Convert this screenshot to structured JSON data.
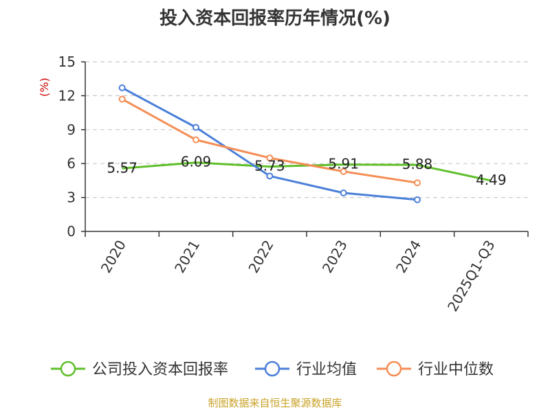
{
  "title": "投入资本回报率历年情况(%)",
  "source": "制图数据来自恒生聚源数据库",
  "chart_data": {
    "type": "line",
    "title": "投入资本回报率历年情况(%)",
    "ylabel": "(%)",
    "xlabel": "",
    "ylim": [
      0,
      15
    ],
    "yticks": [
      0,
      3,
      6,
      9,
      12,
      15
    ],
    "categories": [
      "2020",
      "2021",
      "2022",
      "2023",
      "2024",
      "2025Q1-Q3"
    ],
    "grid": true,
    "legend_position": "bottom",
    "series": [
      {
        "name": "公司投入资本回报率",
        "color": "#5fbf2a",
        "values": [
          5.57,
          6.09,
          5.73,
          5.91,
          5.88,
          4.49
        ],
        "labels": true
      },
      {
        "name": "行业均值",
        "color": "#4a7fd9",
        "values": [
          12.7,
          9.2,
          4.9,
          3.4,
          2.8,
          null
        ],
        "labels": false
      },
      {
        "name": "行业中位数",
        "color": "#f58d55",
        "values": [
          11.7,
          8.1,
          6.5,
          5.3,
          4.3,
          null
        ],
        "labels": false
      }
    ]
  }
}
